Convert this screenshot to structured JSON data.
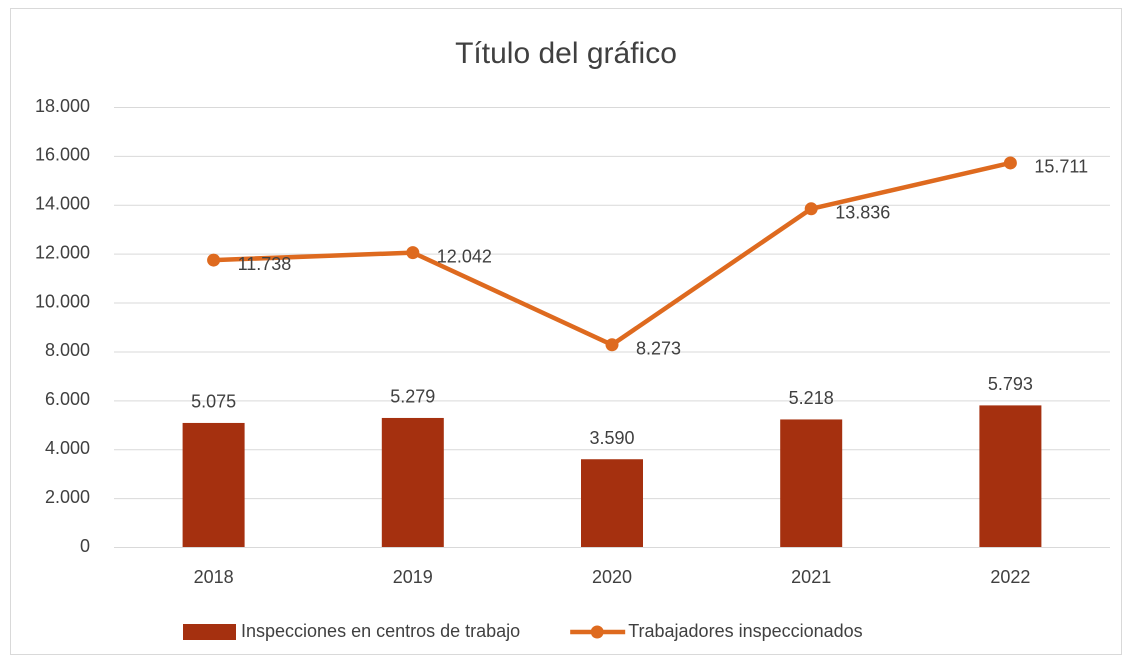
{
  "chart_data": {
    "type": "combo",
    "title": "Título del gráfico",
    "categories": [
      "2018",
      "2019",
      "2020",
      "2021",
      "2022"
    ],
    "series": [
      {
        "name": "Inspecciones en centros de trabajo",
        "type": "bar",
        "color": "#a5300f",
        "values": [
          5075,
          5279,
          3590,
          5218,
          5793
        ],
        "value_labels": [
          "5.075",
          "5.279",
          "3.590",
          "5.218",
          "5.793"
        ]
      },
      {
        "name": "Trabajadores inspeccionados",
        "type": "line",
        "color": "#de6a1f",
        "values": [
          11738,
          12042,
          8273,
          13836,
          15711
        ],
        "value_labels": [
          "11.738",
          "12.042",
          "8.273",
          "13.836",
          "15.711"
        ]
      }
    ],
    "ylim": [
      0,
      18000
    ],
    "yticks": [
      0,
      {
        "value": 2000,
        "label": "2.000"
      },
      {
        "value": 4000,
        "label": "4.000"
      },
      {
        "value": 6000,
        "label": "6.000"
      },
      {
        "value": 8000,
        "label": "8.000"
      },
      {
        "value": 10000,
        "label": "10.000"
      },
      {
        "value": 12000,
        "label": "12.000"
      },
      {
        "value": 14000,
        "label": "14.000"
      },
      {
        "value": 16000,
        "label": "16.000"
      },
      {
        "value": 18000,
        "label": "18.000"
      }
    ],
    "grid": true,
    "legend": "bottom"
  }
}
